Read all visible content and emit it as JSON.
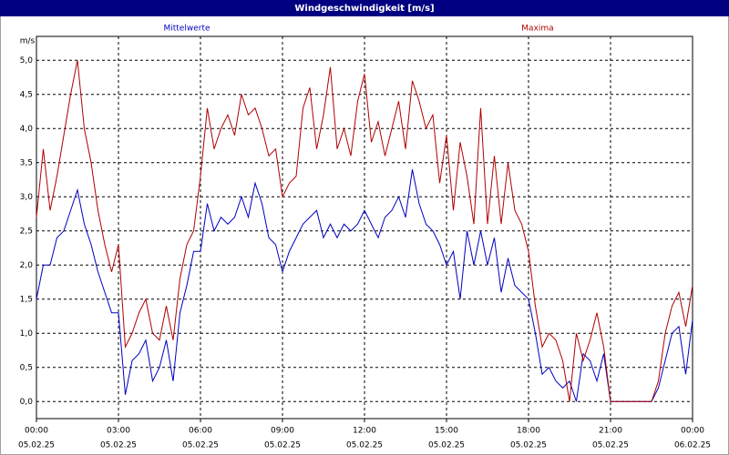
{
  "chart_data": {
    "type": "line",
    "title": "Windgeschwindigkeit [m/s]",
    "y_unit": "m/s",
    "x": [
      0,
      0.25,
      0.5,
      0.75,
      1,
      1.25,
      1.5,
      1.75,
      2,
      2.25,
      2.5,
      2.75,
      3,
      3.25,
      3.5,
      3.75,
      4,
      4.25,
      4.5,
      4.75,
      5,
      5.25,
      5.5,
      5.75,
      6,
      6.25,
      6.5,
      6.75,
      7,
      7.25,
      7.5,
      7.75,
      8,
      8.25,
      8.5,
      8.75,
      9,
      9.25,
      9.5,
      9.75,
      10,
      10.25,
      10.5,
      10.75,
      11,
      11.25,
      11.5,
      11.75,
      12,
      12.25,
      12.5,
      12.75,
      13,
      13.25,
      13.5,
      13.75,
      14,
      14.25,
      14.5,
      14.75,
      15,
      15.25,
      15.5,
      15.75,
      16,
      16.25,
      16.5,
      16.75,
      17,
      17.25,
      17.5,
      17.75,
      18,
      18.25,
      18.5,
      18.75,
      19,
      19.25,
      19.5,
      19.75,
      20,
      20.25,
      20.5,
      20.75,
      21,
      21.25,
      21.5,
      21.75,
      22,
      22.25,
      22.5,
      22.75,
      23,
      23.25,
      23.5,
      23.75,
      24
    ],
    "series": [
      {
        "name": "Mittelwerte",
        "color": "#0000c0",
        "values": [
          1.5,
          2.0,
          2.0,
          2.4,
          2.5,
          2.8,
          3.1,
          2.6,
          2.3,
          1.9,
          1.6,
          1.3,
          1.3,
          0.1,
          0.6,
          0.7,
          0.9,
          0.3,
          0.5,
          0.9,
          0.3,
          1.3,
          1.7,
          2.2,
          2.2,
          2.9,
          2.5,
          2.7,
          2.6,
          2.7,
          3.0,
          2.7,
          3.2,
          2.9,
          2.4,
          2.3,
          1.9,
          2.2,
          2.4,
          2.6,
          2.7,
          2.8,
          2.4,
          2.6,
          2.4,
          2.6,
          2.5,
          2.6,
          2.8,
          2.6,
          2.4,
          2.7,
          2.8,
          3.0,
          2.7,
          3.4,
          2.9,
          2.6,
          2.5,
          2.3,
          2.0,
          2.2,
          1.5,
          2.5,
          2.0,
          2.5,
          2.0,
          2.4,
          1.6,
          2.1,
          1.7,
          1.6,
          1.5,
          1.0,
          0.4,
          0.5,
          0.3,
          0.2,
          0.3,
          0.0,
          0.7,
          0.6,
          0.3,
          0.7,
          0,
          0,
          0,
          0,
          0,
          0,
          0,
          0.2,
          0.6,
          1.0,
          1.1,
          0.4,
          1.2
        ]
      },
      {
        "name": "Maxima",
        "color": "#b00000",
        "values": [
          2.7,
          3.7,
          2.8,
          3.3,
          3.9,
          4.5,
          5.0,
          4.0,
          3.5,
          2.8,
          2.3,
          1.9,
          2.3,
          0.8,
          1.0,
          1.3,
          1.5,
          1.0,
          0.9,
          1.4,
          0.9,
          1.8,
          2.3,
          2.5,
          3.3,
          4.3,
          3.7,
          4.0,
          4.2,
          3.9,
          4.5,
          4.2,
          4.3,
          4.0,
          3.6,
          3.7,
          3.0,
          3.2,
          3.3,
          4.3,
          4.6,
          3.7,
          4.2,
          4.9,
          3.7,
          4.0,
          3.6,
          4.4,
          4.8,
          3.8,
          4.1,
          3.6,
          4.0,
          4.4,
          3.7,
          4.7,
          4.4,
          4.0,
          4.2,
          3.2,
          3.9,
          2.8,
          3.8,
          3.3,
          2.6,
          4.3,
          2.6,
          3.6,
          2.6,
          3.5,
          2.8,
          2.6,
          2.2,
          1.4,
          0.8,
          1.0,
          0.9,
          0.6,
          0.0,
          1.0,
          0.6,
          0.9,
          1.3,
          0.8,
          0,
          0,
          0,
          0,
          0,
          0,
          0,
          0.3,
          1.0,
          1.4,
          1.6,
          1.1,
          1.7
        ]
      }
    ],
    "xlim": [
      0,
      24
    ],
    "xticks": [
      {
        "value": 0,
        "label": "00:00"
      },
      {
        "value": 3,
        "label": "03:00"
      },
      {
        "value": 6,
        "label": "06:00"
      },
      {
        "value": 9,
        "label": "09:00"
      },
      {
        "value": 12,
        "label": "12:00"
      },
      {
        "value": 15,
        "label": "15:00"
      },
      {
        "value": 18,
        "label": "18:00"
      },
      {
        "value": 21,
        "label": "21:00"
      },
      {
        "value": 24,
        "label": "00:00"
      }
    ],
    "xtick_dates": [
      "05.02.25",
      "05.02.25",
      "05.02.25",
      "05.02.25",
      "05.02.25",
      "05.02.25",
      "05.02.25",
      "05.02.25",
      "06.02.25"
    ],
    "ylim": [
      -0.25,
      5.35
    ],
    "yticks": [
      {
        "value": 0,
        "label": "0,0"
      },
      {
        "value": 0.5,
        "label": "0,5"
      },
      {
        "value": 1,
        "label": "1,0"
      },
      {
        "value": 1.5,
        "label": "1,5"
      },
      {
        "value": 2,
        "label": "2,0"
      },
      {
        "value": 2.5,
        "label": "2,5"
      },
      {
        "value": 3,
        "label": "3,0"
      },
      {
        "value": 3.5,
        "label": "3,5"
      },
      {
        "value": 4,
        "label": "4,0"
      },
      {
        "value": 4.5,
        "label": "4,5"
      },
      {
        "value": 5,
        "label": "5,0"
      }
    ],
    "grid": true
  }
}
